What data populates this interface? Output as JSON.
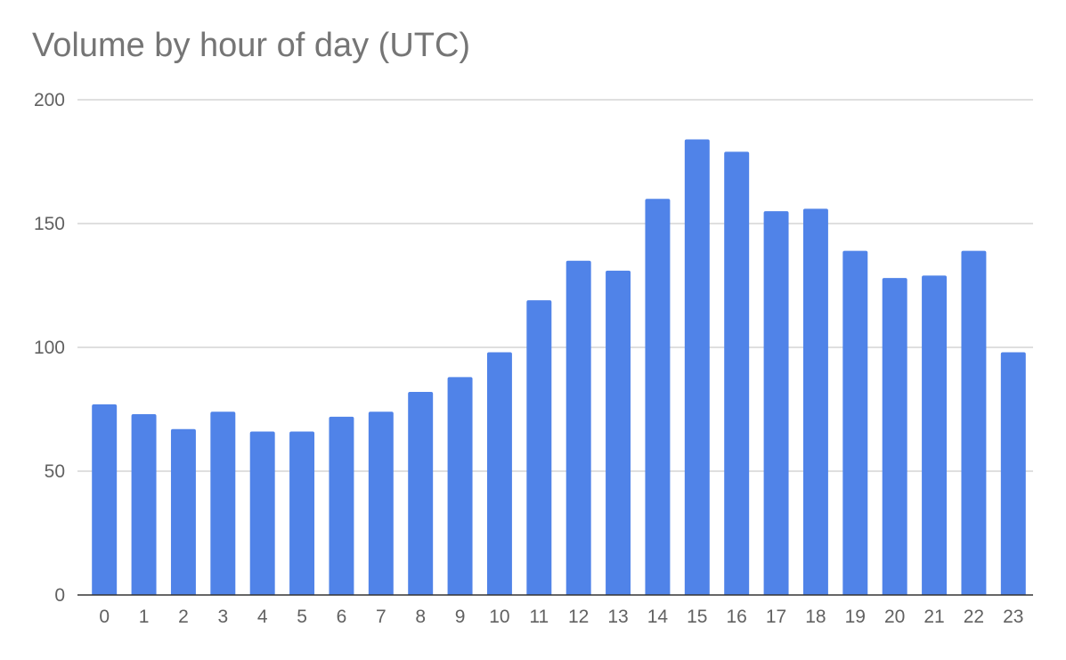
{
  "chart_data": {
    "type": "bar",
    "title": "Volume by hour of day (UTC)",
    "xlabel": "",
    "ylabel": "",
    "categories": [
      "0",
      "1",
      "2",
      "3",
      "4",
      "5",
      "6",
      "7",
      "8",
      "9",
      "10",
      "11",
      "12",
      "13",
      "14",
      "15",
      "16",
      "17",
      "18",
      "19",
      "20",
      "21",
      "22",
      "23"
    ],
    "values": [
      77,
      73,
      67,
      74,
      66,
      66,
      72,
      74,
      82,
      88,
      98,
      119,
      135,
      131,
      160,
      184,
      179,
      155,
      156,
      139,
      128,
      129,
      139,
      98
    ],
    "ylim": [
      0,
      200
    ],
    "yticks": [
      "0",
      "50",
      "100",
      "150",
      "200"
    ],
    "grid": true,
    "bar_color": "#5083e8",
    "grid_color": "#cccccc",
    "axis_color": "#333333"
  }
}
